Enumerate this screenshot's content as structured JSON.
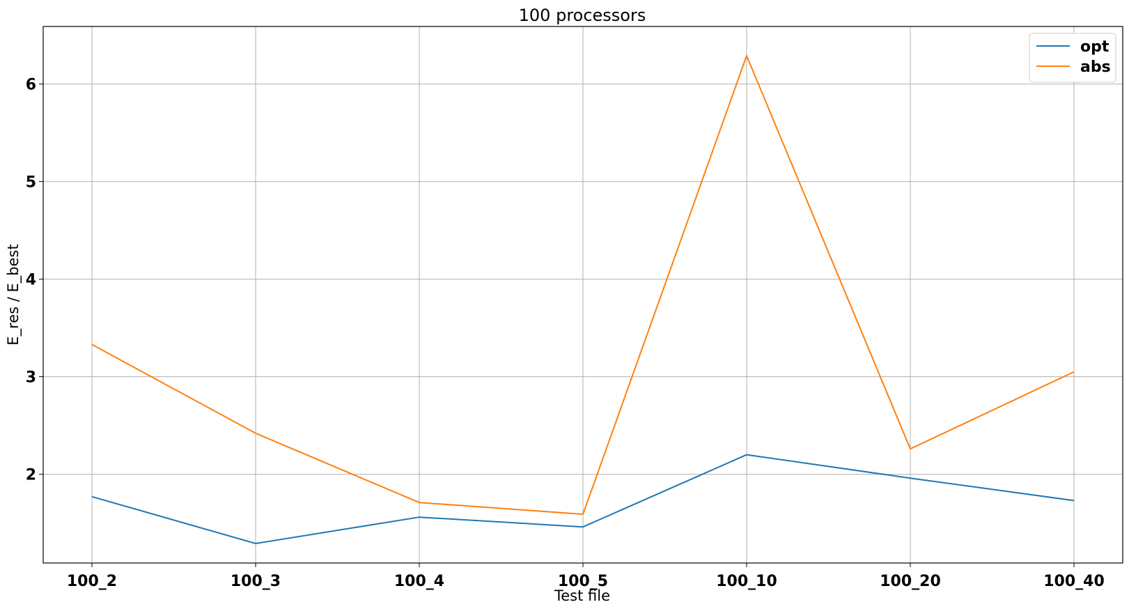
{
  "chart_data": {
    "type": "line",
    "title": "100 processors",
    "xlabel": "Test file",
    "ylabel": "E_res / E_best",
    "categories": [
      "100_2",
      "100_3",
      "100_4",
      "100_5",
      "100_10",
      "100_20",
      "100_40"
    ],
    "yticks": [
      2,
      3,
      4,
      5,
      6
    ],
    "ylim": [
      1.09,
      6.59
    ],
    "grid": true,
    "legend_position": "top-right",
    "series": [
      {
        "name": "opt",
        "color": "#1f77b4",
        "values": [
          1.77,
          1.29,
          1.56,
          1.46,
          2.2,
          1.96,
          1.73
        ]
      },
      {
        "name": "abs",
        "color": "#ff7f0e",
        "values": [
          3.33,
          2.42,
          1.71,
          1.59,
          6.29,
          2.26,
          3.05
        ]
      }
    ]
  }
}
